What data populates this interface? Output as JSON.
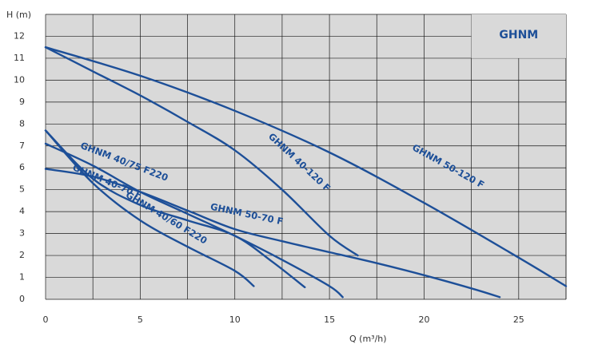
{
  "chart_data": {
    "type": "line",
    "title": "GHNM",
    "xlabel": "Q (m³/h)",
    "ylabel": "H (m)",
    "xlim": [
      0,
      27.5
    ],
    "ylim": [
      0,
      13
    ],
    "xticks": [
      0,
      5,
      10,
      15,
      20,
      25
    ],
    "yticks": [
      0,
      1,
      2,
      3,
      4,
      5,
      6,
      7,
      8,
      9,
      10,
      11,
      12
    ],
    "grid": true,
    "colors": {
      "background": "#d9d9d9",
      "grid": "#1a1a1a",
      "curve": "#1d4f98",
      "brand_box": "#d9d9d9"
    },
    "series": [
      {
        "name": "GHNM 50-120 F",
        "x": [
          0,
          5,
          10,
          15,
          20,
          25,
          27.5
        ],
        "y": [
          11.5,
          10.2,
          8.6,
          6.7,
          4.4,
          1.9,
          0.6
        ]
      },
      {
        "name": "GHNM 40-120 F",
        "x": [
          0,
          2.5,
          5,
          7.5,
          10,
          12.5,
          15,
          16.5
        ],
        "y": [
          11.5,
          10.4,
          9.3,
          8.1,
          6.8,
          5.0,
          2.9,
          2.0
        ]
      },
      {
        "name": "GHNM 50-70 F",
        "x": [
          0,
          2.5,
          5,
          7.5,
          10,
          12.5,
          15,
          17.5,
          20,
          22.5,
          24
        ],
        "y": [
          5.95,
          5.6,
          4.9,
          4.05,
          3.2,
          2.65,
          2.15,
          1.65,
          1.1,
          0.5,
          0.1
        ]
      },
      {
        "name": "GHNM 40-70 F",
        "x": [
          0,
          2.5,
          5,
          7.5,
          10,
          12.5,
          15,
          15.7
        ],
        "y": [
          7.1,
          6.1,
          4.9,
          3.9,
          2.9,
          1.8,
          0.6,
          0.1
        ]
      },
      {
        "name": "GHNM 40/75 F220",
        "x": [
          0,
          2.5,
          5,
          7.5,
          10,
          12,
          13.7
        ],
        "y": [
          7.7,
          5.5,
          4.3,
          3.6,
          2.9,
          1.7,
          0.55
        ]
      },
      {
        "name": "GHNM 40/60 F220",
        "x": [
          0,
          2.5,
          5,
          7.5,
          10,
          11
        ],
        "y": [
          7.7,
          5.3,
          3.6,
          2.4,
          1.3,
          0.6
        ]
      }
    ],
    "labels": [
      {
        "text": "GHNM 50-120 F",
        "series": 0
      },
      {
        "text": "GHNM 40-120 F",
        "series": 1
      },
      {
        "text": "GHNM 50-70 F",
        "series": 2
      },
      {
        "text": "GHNM 40-70 F",
        "series": 3
      },
      {
        "text": "GHNM 40/75 F220",
        "series": 4
      },
      {
        "text": "GHNM 40/60 F220",
        "series": 5
      }
    ]
  }
}
